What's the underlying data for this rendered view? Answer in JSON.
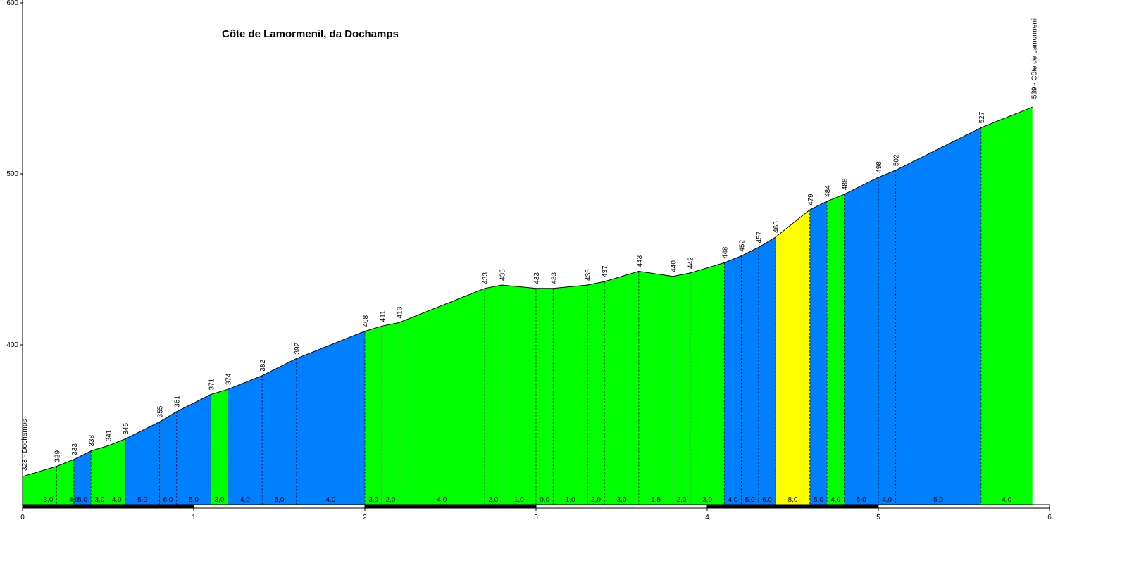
{
  "chart_data": {
    "type": "area",
    "title": "Côte de Lamormenil, da Dochamps",
    "xlabel": "",
    "ylabel": "",
    "xlim": [
      0,
      6
    ],
    "ylim": [
      300,
      600
    ],
    "x_ticks": [
      "0",
      "1",
      "2",
      "3",
      "4",
      "5",
      "6"
    ],
    "y_ticks": [
      "400",
      "500",
      "600"
    ],
    "grid": false,
    "colors": {
      "easy": "#00ff00",
      "medium": "#0080ff",
      "hard": "#ffff00"
    },
    "start_label": "323 - Dochamps",
    "end_label": "539 - Côte de Lamormenil",
    "points": [
      {
        "x": 0.0,
        "y": 323,
        "label": ""
      },
      {
        "x": 0.2,
        "y": 329,
        "label": "329"
      },
      {
        "x": 0.3,
        "y": 333,
        "label": "333"
      },
      {
        "x": 0.4,
        "y": 338,
        "label": "338"
      },
      {
        "x": 0.5,
        "y": 341,
        "label": "341"
      },
      {
        "x": 0.6,
        "y": 345,
        "label": "345"
      },
      {
        "x": 0.8,
        "y": 355,
        "label": "355"
      },
      {
        "x": 0.9,
        "y": 361,
        "label": "361"
      },
      {
        "x": 1.1,
        "y": 371,
        "label": "371"
      },
      {
        "x": 1.2,
        "y": 374,
        "label": "374"
      },
      {
        "x": 1.4,
        "y": 382,
        "label": "382"
      },
      {
        "x": 1.6,
        "y": 392,
        "label": "392"
      },
      {
        "x": 2.0,
        "y": 408,
        "label": "408"
      },
      {
        "x": 2.1,
        "y": 411,
        "label": "411"
      },
      {
        "x": 2.2,
        "y": 413,
        "label": "413"
      },
      {
        "x": 2.7,
        "y": 433,
        "label": "433"
      },
      {
        "x": 2.8,
        "y": 435,
        "label": "435"
      },
      {
        "x": 3.0,
        "y": 433,
        "label": "433"
      },
      {
        "x": 3.1,
        "y": 433,
        "label": "433"
      },
      {
        "x": 3.3,
        "y": 435,
        "label": "435"
      },
      {
        "x": 3.4,
        "y": 437,
        "label": "437"
      },
      {
        "x": 3.6,
        "y": 443,
        "label": "443"
      },
      {
        "x": 3.8,
        "y": 440,
        "label": "440"
      },
      {
        "x": 3.9,
        "y": 442,
        "label": "442"
      },
      {
        "x": 4.1,
        "y": 448,
        "label": "448"
      },
      {
        "x": 4.2,
        "y": 452,
        "label": "452"
      },
      {
        "x": 4.3,
        "y": 457,
        "label": "457"
      },
      {
        "x": 4.4,
        "y": 463,
        "label": "463"
      },
      {
        "x": 4.6,
        "y": 479,
        "label": "479"
      },
      {
        "x": 4.7,
        "y": 484,
        "label": "484"
      },
      {
        "x": 4.8,
        "y": 488,
        "label": "488"
      },
      {
        "x": 5.0,
        "y": 498,
        "label": "498"
      },
      {
        "x": 5.1,
        "y": 502,
        "label": "502"
      },
      {
        "x": 5.6,
        "y": 527,
        "label": "527"
      },
      {
        "x": 5.9,
        "y": 539,
        "label": ""
      }
    ],
    "segments": [
      {
        "from": 0.0,
        "to": 0.3,
        "grade": "3,0",
        "color": "easy"
      },
      {
        "from": 0.2,
        "to": 0.3,
        "grade": "4,0",
        "color": "easy"
      },
      {
        "from": 0.3,
        "to": 0.4,
        "grade": "5,0",
        "color": "medium"
      },
      {
        "from": 0.4,
        "to": 0.5,
        "grade": "3,0",
        "color": "easy"
      },
      {
        "from": 0.5,
        "to": 0.6,
        "grade": "4,0",
        "color": "easy"
      },
      {
        "from": 0.6,
        "to": 0.8,
        "grade": "5,0",
        "color": "medium"
      },
      {
        "from": 0.8,
        "to": 0.9,
        "grade": "6,0",
        "color": "medium"
      },
      {
        "from": 0.9,
        "to": 1.1,
        "grade": "5,0",
        "color": "medium"
      },
      {
        "from": 1.1,
        "to": 1.2,
        "grade": "3,0",
        "color": "easy"
      },
      {
        "from": 1.2,
        "to": 1.4,
        "grade": "4,0",
        "color": "medium"
      },
      {
        "from": 1.4,
        "to": 1.6,
        "grade": "5,0",
        "color": "medium"
      },
      {
        "from": 1.6,
        "to": 2.0,
        "grade": "4,0",
        "color": "medium"
      },
      {
        "from": 2.0,
        "to": 2.1,
        "grade": "3,0",
        "color": "easy"
      },
      {
        "from": 2.1,
        "to": 2.2,
        "grade": "2,0",
        "color": "easy"
      },
      {
        "from": 2.2,
        "to": 2.7,
        "grade": "4,0",
        "color": "easy"
      },
      {
        "from": 2.7,
        "to": 2.8,
        "grade": "2,0",
        "color": "easy"
      },
      {
        "from": 2.8,
        "to": 3.0,
        "grade": "1,0",
        "color": "easy"
      },
      {
        "from": 3.0,
        "to": 3.1,
        "grade": "0,0",
        "color": "easy"
      },
      {
        "from": 3.1,
        "to": 3.3,
        "grade": "1,0",
        "color": "easy"
      },
      {
        "from": 3.3,
        "to": 3.4,
        "grade": "2,0",
        "color": "easy"
      },
      {
        "from": 3.4,
        "to": 3.6,
        "grade": "3,0",
        "color": "easy"
      },
      {
        "from": 3.6,
        "to": 3.8,
        "grade": "1,5",
        "color": "easy"
      },
      {
        "from": 3.8,
        "to": 3.9,
        "grade": "2,0",
        "color": "easy"
      },
      {
        "from": 3.9,
        "to": 4.1,
        "grade": "3,0",
        "color": "easy"
      },
      {
        "from": 4.1,
        "to": 4.2,
        "grade": "4,0",
        "color": "medium"
      },
      {
        "from": 4.2,
        "to": 4.3,
        "grade": "5,0",
        "color": "medium"
      },
      {
        "from": 4.3,
        "to": 4.4,
        "grade": "6,0",
        "color": "medium"
      },
      {
        "from": 4.4,
        "to": 4.6,
        "grade": "8,0",
        "color": "hard"
      },
      {
        "from": 4.6,
        "to": 4.7,
        "grade": "5,0",
        "color": "medium"
      },
      {
        "from": 4.7,
        "to": 4.8,
        "grade": "4,0",
        "color": "easy"
      },
      {
        "from": 4.8,
        "to": 5.0,
        "grade": "5,0",
        "color": "medium"
      },
      {
        "from": 5.0,
        "to": 5.1,
        "grade": "4,0",
        "color": "medium"
      },
      {
        "from": 5.1,
        "to": 5.6,
        "grade": "5,0",
        "color": "medium"
      },
      {
        "from": 5.6,
        "to": 5.9,
        "grade": "4,0",
        "color": "easy"
      }
    ]
  }
}
